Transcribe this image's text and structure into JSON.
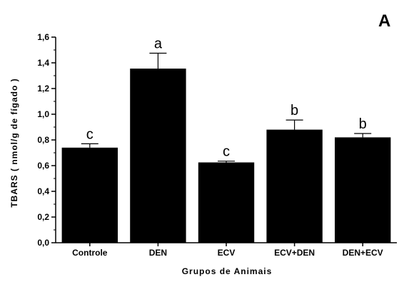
{
  "chart_data": {
    "type": "bar",
    "panel_label": "A",
    "title": "",
    "xlabel": "Grupos de Animais",
    "ylabel": "TBARS ( nmol/g de fígado )",
    "categories": [
      "Controle",
      "DEN",
      "ECV",
      "ECV+DEN",
      "DEN+ECV"
    ],
    "values": [
      0.74,
      1.355,
      0.625,
      0.88,
      0.82
    ],
    "errors": [
      0.03,
      0.12,
      0.01,
      0.075,
      0.03
    ],
    "significance_labels": [
      "c",
      "a",
      "c",
      "b",
      "b"
    ],
    "ylim": [
      0.0,
      1.6
    ],
    "yticks": [
      "0,0",
      "0,2",
      "0,4",
      "0,6",
      "0,8",
      "1,0",
      "1,2",
      "1,4",
      "1,6"
    ],
    "ytick_values": [
      0.0,
      0.2,
      0.4,
      0.6,
      0.8,
      1.0,
      1.2,
      1.4,
      1.6
    ],
    "grid": false,
    "legend": "none",
    "bar_color": "#000000"
  }
}
